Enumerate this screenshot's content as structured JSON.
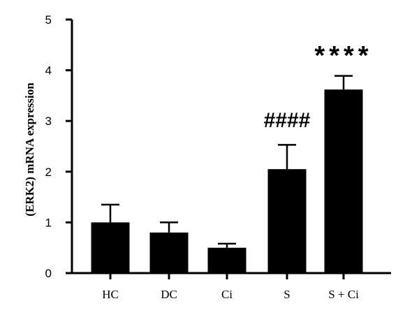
{
  "chart_data": {
    "type": "bar",
    "title": "",
    "xlabel": "",
    "ylabel": "(ERK2) mRNA expression",
    "ylim": [
      0,
      5
    ],
    "yticks": [
      0,
      1,
      2,
      3,
      4,
      5
    ],
    "categories": [
      "HC",
      "DC",
      "Ci",
      "S",
      "S + Ci"
    ],
    "values": [
      1.0,
      0.8,
      0.5,
      2.05,
      3.62
    ],
    "errors": [
      0.35,
      0.2,
      0.08,
      0.48,
      0.27
    ],
    "annotations": [
      {
        "category": "S",
        "text": "####"
      },
      {
        "category": "S + Ci",
        "text": "****"
      }
    ],
    "colors": {
      "bar": "#000000",
      "axis": "#000000"
    },
    "grid": false
  }
}
